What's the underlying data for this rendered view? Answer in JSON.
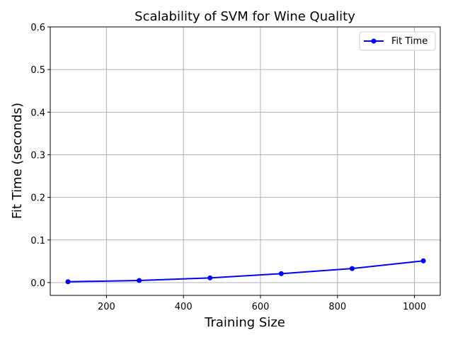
{
  "chart_data": {
    "type": "line",
    "title": "Scalability of SVM for Wine Quality",
    "xlabel": "Training Size",
    "ylabel": "Fit Time (seconds)",
    "xlim": [
      54,
      1067
    ],
    "ylim": [
      -0.03,
      0.6
    ],
    "xticks": [
      200,
      400,
      600,
      800,
      1000
    ],
    "yticks": [
      0.0,
      0.1,
      0.2,
      0.3,
      0.4,
      0.5,
      0.6
    ],
    "grid": true,
    "legend_position": "top-right",
    "series": [
      {
        "name": "Fit Time",
        "color": "#0000ff",
        "marker": "circle",
        "x": [
          100,
          285,
          469,
          654,
          838,
          1023
        ],
        "y": [
          0.002,
          0.005,
          0.011,
          0.021,
          0.033,
          0.051
        ]
      }
    ]
  }
}
